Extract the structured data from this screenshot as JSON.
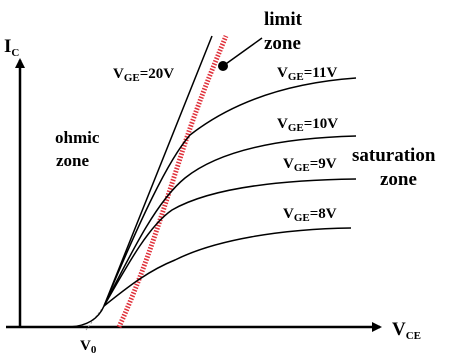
{
  "axes": {
    "y_label_main": "I",
    "y_label_sub": "C",
    "x_label_main": "V",
    "x_label_sub": "CE",
    "origin_label_main": "V",
    "origin_label_sub": "0"
  },
  "zones": {
    "limit_line1": "limit",
    "limit_line2": "zone",
    "ohmic_line1": "ohmic",
    "ohmic_line2": "zone",
    "saturation_line1": "saturation",
    "saturation_line2": "zone"
  },
  "curves": [
    {
      "main": "V",
      "sub": "GE",
      "value": "=20V"
    },
    {
      "main": "V",
      "sub": "GE",
      "value": "=11V"
    },
    {
      "main": "V",
      "sub": "GE",
      "value": "=10V"
    },
    {
      "main": "V",
      "sub": "GE",
      "value": "=9V"
    },
    {
      "main": "V",
      "sub": "GE",
      "value": "=8V"
    }
  ],
  "colors": {
    "curve": "#000000",
    "limit_line": "#e0303a"
  }
}
